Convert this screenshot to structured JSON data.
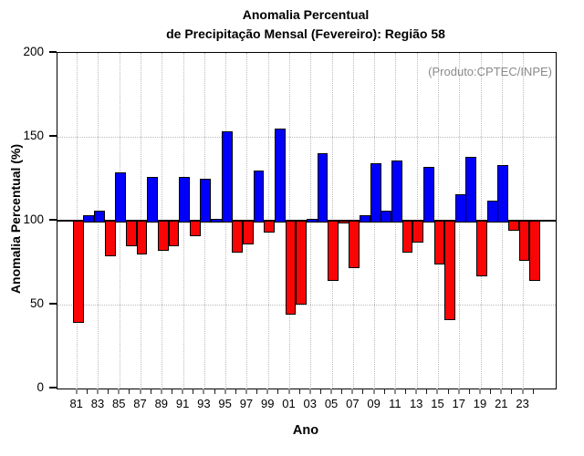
{
  "title": {
    "line1": "Anomalia Percentual",
    "line2": "de Precipitação Mensal (Fevereiro): Região 58"
  },
  "annotation": {
    "text": "(Produto:CPTEC/INPE)",
    "color": "#8a8a8a"
  },
  "axes": {
    "y_label": "Anomalia Percentual (%)",
    "x_label": "Ano",
    "y_ticks": [
      0,
      50,
      100,
      150,
      200
    ],
    "y_range": [
      0,
      200
    ],
    "baseline_value": 100
  },
  "colors": {
    "bar_above_baseline": "#0000fa",
    "bar_below_baseline": "#fa0505",
    "bar_outline": "#000000",
    "gridline": "#bbbbbb",
    "axis": "#000000"
  },
  "chart_data": {
    "type": "bar",
    "title": "Anomalia Percentual de Precipitação Mensal (Fevereiro): Região 58",
    "xlabel": "Ano",
    "ylabel": "Anomalia Percentual (%)",
    "ylim": [
      0,
      200
    ],
    "baseline": 100,
    "grid": {
      "horizontal_lines": [
        50,
        150
      ],
      "vertical_lines_at_odd_years": true
    },
    "legend": "none",
    "x_tick_labels": [
      "81",
      "83",
      "85",
      "87",
      "89",
      "91",
      "93",
      "95",
      "97",
      "99",
      "01",
      "03",
      "05",
      "07",
      "09",
      "11",
      "13",
      "15",
      "17",
      "19",
      "21",
      "23"
    ],
    "years": [
      1981,
      1982,
      1983,
      1984,
      1985,
      1986,
      1987,
      1988,
      1989,
      1990,
      1991,
      1992,
      1993,
      1994,
      1995,
      1996,
      1997,
      1998,
      1999,
      2000,
      2001,
      2002,
      2003,
      2004,
      2005,
      2006,
      2007,
      2008,
      2009,
      2010,
      2011,
      2012,
      2013,
      2014,
      2015,
      2016,
      2017,
      2018,
      2019,
      2020,
      2021,
      2022,
      2023,
      2024
    ],
    "values": [
      40,
      103,
      106,
      80,
      129,
      86,
      81,
      126,
      83,
      86,
      126,
      92,
      125,
      101,
      153,
      82,
      87,
      130,
      94,
      155,
      45,
      51,
      101,
      140,
      65,
      99.5,
      73,
      103,
      134,
      106,
      136,
      82,
      88,
      132,
      75,
      42,
      116,
      138,
      68,
      112,
      133,
      95,
      77,
      65
    ],
    "color_rule": "blue if value >= 100, red if value < 100"
  }
}
